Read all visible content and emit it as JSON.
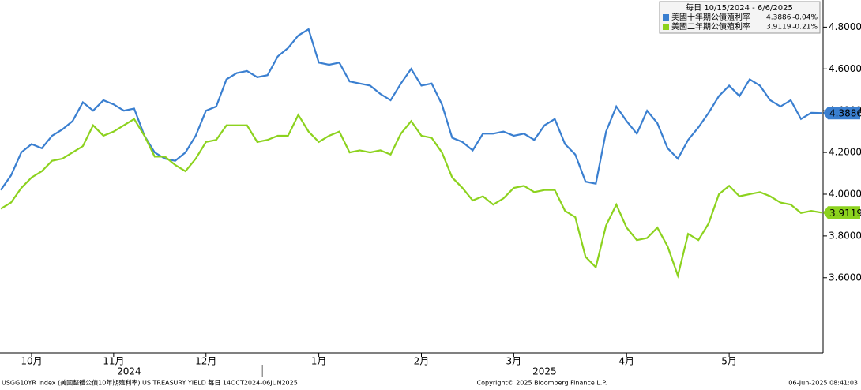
{
  "chart_data": {
    "type": "line",
    "legend_header": "每日 10/15/2024 - 6/6/2025",
    "categories": [
      null,
      null,
      null,
      "10月",
      null,
      null,
      null,
      null,
      null,
      null,
      null,
      "11月",
      null,
      null,
      null,
      null,
      null,
      null,
      null,
      null,
      "12月",
      null,
      null,
      null,
      null,
      null,
      null,
      null,
      null,
      null,
      null,
      "1月",
      null,
      null,
      null,
      null,
      null,
      null,
      null,
      null,
      null,
      "2月",
      null,
      null,
      null,
      null,
      null,
      null,
      null,
      null,
      "3月",
      null,
      null,
      null,
      null,
      null,
      null,
      null,
      null,
      null,
      null,
      "4月",
      null,
      null,
      null,
      null,
      null,
      null,
      null,
      null,
      null,
      "5月",
      null,
      null,
      null,
      null,
      null,
      null,
      null,
      null,
      null
    ],
    "x_groups": [
      {
        "label": "2024",
        "start": 0,
        "end": 25
      },
      {
        "label": "2025",
        "start": 26,
        "end": 80
      }
    ],
    "series": [
      {
        "name": "美國十年期公債殖利率",
        "color": "#3a7fd0",
        "change": {
          "value": -0.04,
          "label": "-0.04%"
        },
        "values": [
          4.02,
          4.09,
          4.2,
          4.24,
          4.22,
          4.28,
          4.31,
          4.35,
          4.44,
          4.4,
          4.45,
          4.43,
          4.4,
          4.41,
          4.28,
          4.2,
          4.17,
          4.16,
          4.2,
          4.28,
          4.4,
          4.42,
          4.55,
          4.58,
          4.59,
          4.56,
          4.57,
          4.66,
          4.7,
          4.76,
          4.79,
          4.63,
          4.62,
          4.63,
          4.54,
          4.53,
          4.52,
          4.48,
          4.45,
          4.53,
          4.6,
          4.52,
          4.53,
          4.43,
          4.27,
          4.25,
          4.21,
          4.29,
          4.29,
          4.3,
          4.28,
          4.29,
          4.26,
          4.33,
          4.36,
          4.24,
          4.19,
          4.06,
          4.05,
          4.3,
          4.42,
          4.35,
          4.29,
          4.4,
          4.34,
          4.22,
          4.17,
          4.26,
          4.32,
          4.39,
          4.47,
          4.52,
          4.47,
          4.55,
          4.52,
          4.45,
          4.42,
          4.45,
          4.36,
          4.39,
          4.3886
        ]
      },
      {
        "name": "美國二年期公債殖利率",
        "color": "#8cd21e",
        "change": {
          "value": -0.21,
          "label": "-0.21%"
        },
        "values": [
          3.93,
          3.96,
          4.03,
          4.08,
          4.11,
          4.16,
          4.17,
          4.2,
          4.23,
          4.33,
          4.28,
          4.3,
          4.33,
          4.36,
          4.28,
          4.18,
          4.18,
          4.14,
          4.11,
          4.17,
          4.25,
          4.26,
          4.33,
          4.33,
          4.33,
          4.25,
          4.26,
          4.28,
          4.28,
          4.38,
          4.3,
          4.25,
          4.28,
          4.3,
          4.2,
          4.21,
          4.2,
          4.21,
          4.19,
          4.29,
          4.35,
          4.28,
          4.27,
          4.2,
          4.08,
          4.03,
          3.97,
          3.99,
          3.95,
          3.98,
          4.03,
          4.04,
          4.01,
          4.02,
          4.02,
          3.92,
          3.89,
          3.7,
          3.65,
          3.85,
          3.95,
          3.84,
          3.78,
          3.79,
          3.84,
          3.75,
          3.61,
          3.81,
          3.78,
          3.86,
          4.0,
          4.04,
          3.99,
          4.0,
          4.01,
          3.99,
          3.96,
          3.95,
          3.91,
          3.92,
          3.9119
        ]
      }
    ],
    "ylim": [
      3.24,
      4.93
    ],
    "yticks": [
      {
        "value": 3.6,
        "label": "3.6000"
      },
      {
        "value": 3.8,
        "label": "3.8000"
      },
      {
        "value": 4.0,
        "label": "4.0000"
      },
      {
        "value": 4.2,
        "label": "4.2000"
      },
      {
        "value": 4.4,
        "label": "4.4000"
      },
      {
        "value": 4.6,
        "label": "4.6000"
      },
      {
        "value": 4.8,
        "label": "4.8000"
      }
    ],
    "footer_left": "USGG10YR Index (美國整體公債10年期殖利率) US TREASURY YIELD  每日 14OCT2024-06JUN2025",
    "footer_center": "Copyright© 2025 Bloomberg Finance L.P.",
    "footer_right": "06-Jun-2025 08:41:03"
  }
}
